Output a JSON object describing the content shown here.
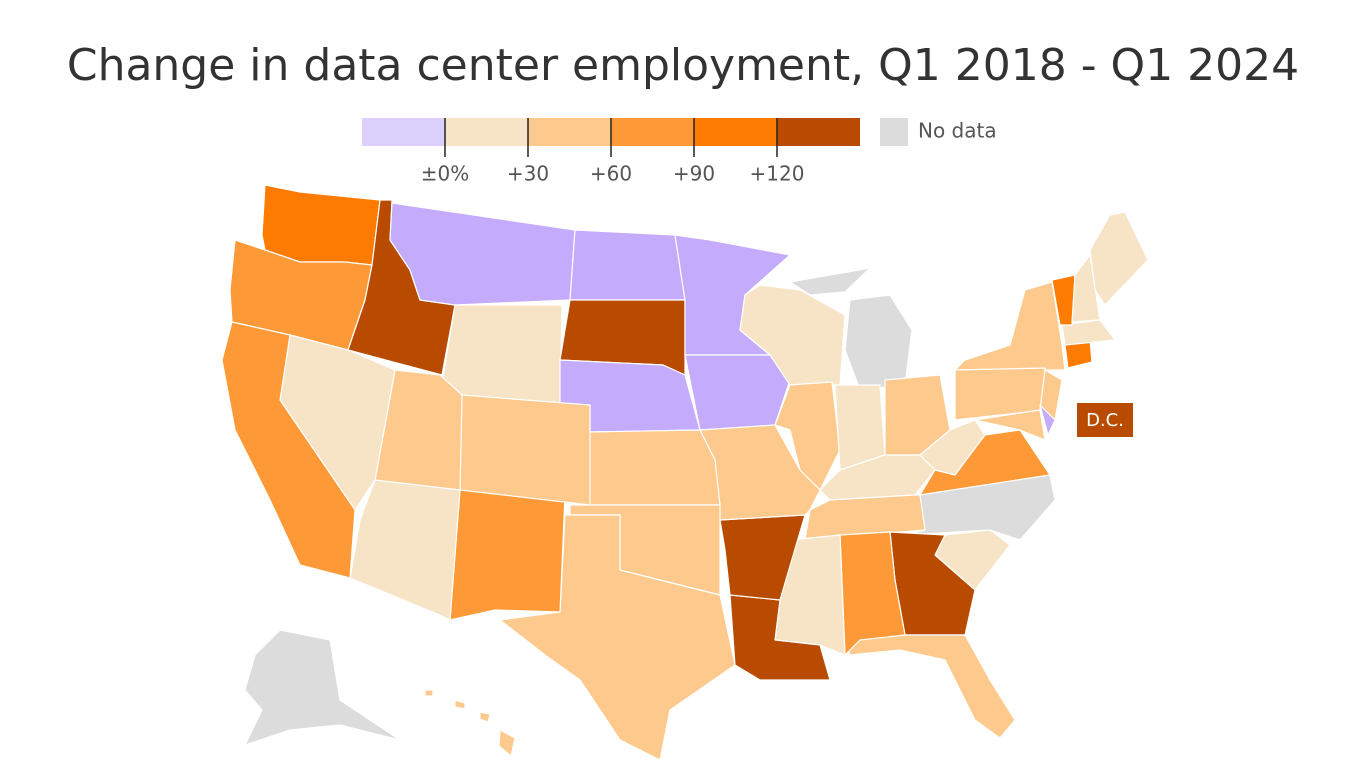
{
  "title": "Change in data center employment, Q1 2018 - Q1 2024",
  "legend": {
    "colors": [
      "#dcd0fc",
      "#f7e4c6",
      "#fdc98c",
      "#fd9a37",
      "#fd7b00",
      "#b84b00"
    ],
    "map_colors": [
      "#c4abfc",
      "#f7e4c6",
      "#fdc98c",
      "#fd9a37",
      "#fd7b00",
      "#b84b00"
    ],
    "xlim": [
      -30,
      150
    ],
    "ticks": [
      {
        "value": 0,
        "label": "±0%"
      },
      {
        "value": 30,
        "label": "+30"
      },
      {
        "value": 60,
        "label": "+60"
      },
      {
        "value": 90,
        "label": "+90"
      },
      {
        "value": 120,
        "label": "+120"
      }
    ],
    "no_data_label": "No data",
    "no_data_color": "#dcdcdc"
  },
  "callout": "D.C."
}
